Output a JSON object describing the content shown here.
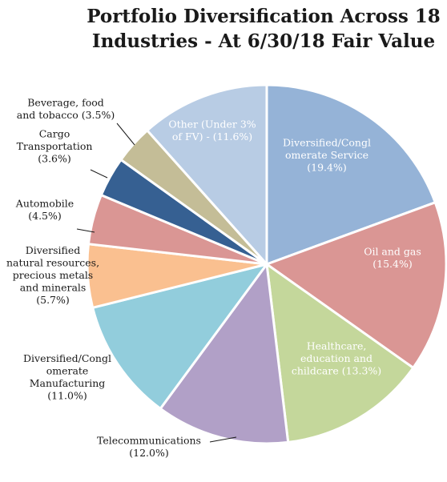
{
  "chart_data": {
    "type": "pie",
    "title_lines": [
      "Portfolio Diversification Across 18",
      "Industries - At 6/30/18 Fair Value"
    ],
    "slices": [
      {
        "label_lines": [
          "Diversified/Congl",
          "omerate Service",
          "(19.4%)"
        ],
        "value": 19.4,
        "color": "#95b3d7"
      },
      {
        "label_lines": [
          "Oil and gas",
          "(15.4%)"
        ],
        "value": 15.4,
        "color": "#da9694"
      },
      {
        "label_lines": [
          "Healthcare,",
          "education and",
          "childcare (13.3%)"
        ],
        "value": 13.3,
        "color": "#c4d79b"
      },
      {
        "label_lines": [
          "Telecommunications",
          "(12.0%)"
        ],
        "value": 12.0,
        "color": "#b1a0c7"
      },
      {
        "label_lines": [
          "Diversified/Congl",
          "omerate",
          "Manufacturing",
          "(11.0%)"
        ],
        "value": 11.0,
        "color": "#92cddc"
      },
      {
        "label_lines": [
          "Diversified",
          "natural resources,",
          "precious metals",
          "and minerals",
          "(5.7%)"
        ],
        "value": 5.7,
        "color": "#fac090"
      },
      {
        "label_lines": [
          "Automobile",
          "(4.5%)"
        ],
        "value": 4.5,
        "color": "#da9694"
      },
      {
        "label_lines": [
          "Cargo",
          "Transportation",
          "(3.6%)"
        ],
        "value": 3.6,
        "color": "#366092"
      },
      {
        "label_lines": [
          "Beverage, food",
          "and tobacco (3.5%)"
        ],
        "value": 3.5,
        "color": "#c4bd97"
      },
      {
        "label_lines": [
          "Other (Under 3%",
          "of FV) - (11.6%)"
        ],
        "value": 11.6,
        "color": "#b8cce4"
      }
    ],
    "legend": "none",
    "start_angle_deg": 0,
    "direction": "clockwise"
  }
}
